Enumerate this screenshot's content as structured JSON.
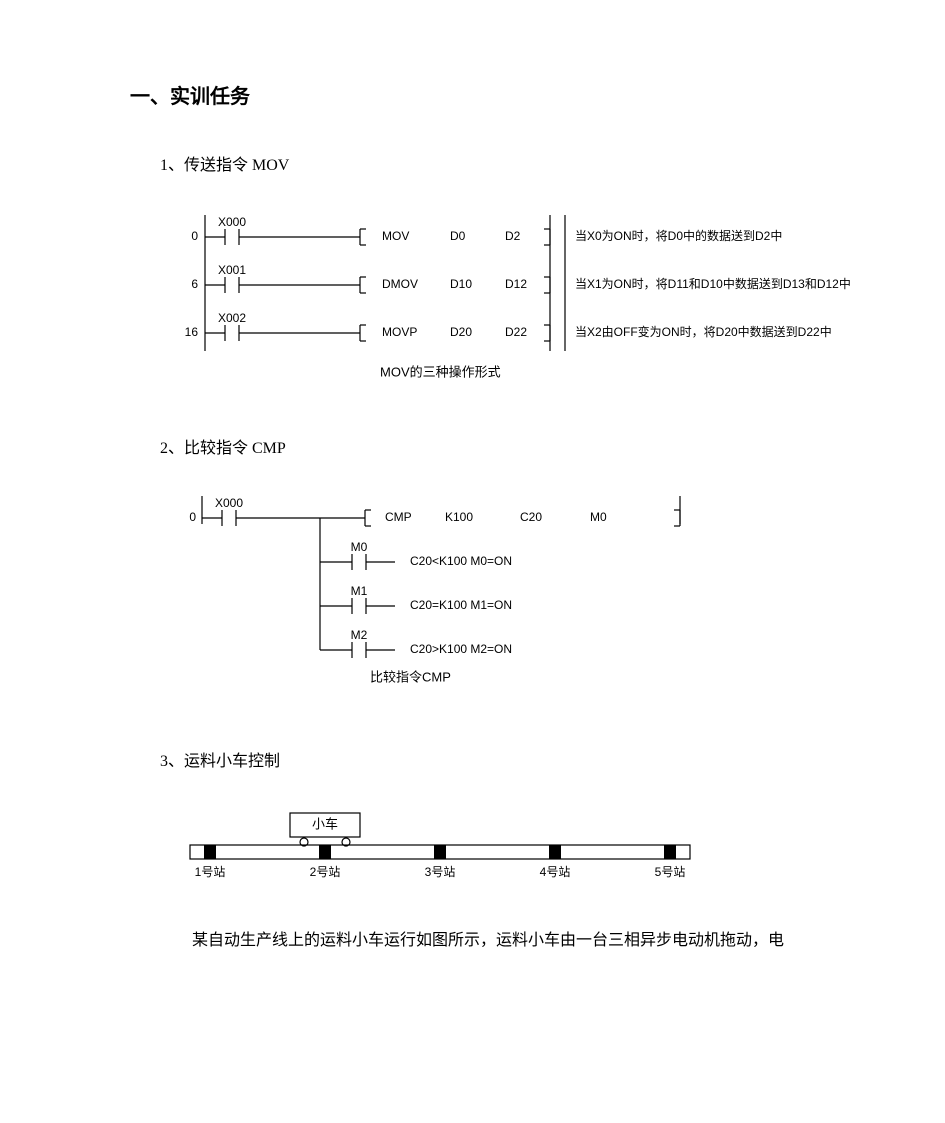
{
  "page": {
    "main_title": "一、实训任务",
    "section1": {
      "title": "1、传送指令 MOV",
      "diagram": {
        "caption": "MOV的三种操作形式",
        "rungs": [
          {
            "addr": "0",
            "contact": "X000",
            "inst": "MOV",
            "op1": "D0",
            "op2": "D2",
            "note": "当X0为ON时，将D0中的数据送到D2中"
          },
          {
            "addr": "6",
            "contact": "X001",
            "inst": "DMOV",
            "op1": "D10",
            "op2": "D12",
            "note": "当X1为ON时，将D11和D10中数据送到D13和D12中"
          },
          {
            "addr": "16",
            "contact": "X002",
            "inst": "MOVP",
            "op1": "D20",
            "op2": "D22",
            "note": "当X2由OFF变为ON时，将D20中数据送到D22中"
          }
        ]
      }
    },
    "section2": {
      "title": "2、比较指令 CMP",
      "diagram": {
        "caption": "比较指令CMP",
        "addr": "0",
        "contact": "X000",
        "inst": "CMP",
        "op1": "K100",
        "op2": "C20",
        "op3": "M0",
        "branches": [
          {
            "contact": "M0",
            "note": "C20<K100  M0=ON"
          },
          {
            "contact": "M1",
            "note": "C20=K100  M1=ON"
          },
          {
            "contact": "M2",
            "note": "C20>K100  M2=ON"
          }
        ]
      }
    },
    "section3": {
      "title": "3、运料小车控制",
      "diagram": {
        "car_label": "小车",
        "stations": [
          "1号站",
          "2号站",
          "3号站",
          "4号站",
          "5号站"
        ]
      },
      "body": "某自动生产线上的运料小车运行如图所示，运料小车由一台三相异步电动机拖动，电"
    }
  },
  "style": {
    "stroke": "#000000",
    "stroke_width": 1.2,
    "font_small": 12,
    "font_body": 16,
    "bg": "#ffffff"
  }
}
